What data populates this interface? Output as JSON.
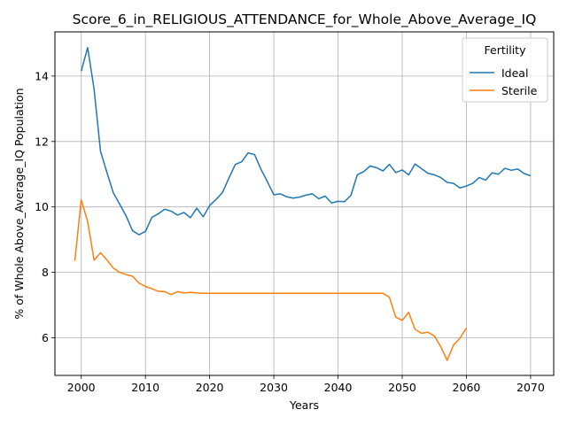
{
  "chart_data": {
    "type": "line",
    "title": "Score_6_in_RELIGIOUS_ATTENDANCE_for_Whole_Above_Average_IQ",
    "xlabel": "Years",
    "ylabel": "% of Whole Above_Average_IQ Population",
    "xlim": [
      1995.9,
      2073.6
    ],
    "ylim": [
      4.85,
      15.35
    ],
    "xticks": [
      2000,
      2010,
      2020,
      2030,
      2040,
      2050,
      2060,
      2070
    ],
    "yticks": [
      6,
      8,
      10,
      12,
      14
    ],
    "grid": true,
    "legend": {
      "title": "Fertility",
      "placement": "top-right"
    },
    "series": [
      {
        "name": "Ideal",
        "color": "#1f77b4",
        "x": [
          2000,
          2001,
          2002,
          2003,
          2004,
          2005,
          2006,
          2007,
          2008,
          2009,
          2010,
          2011,
          2012,
          2013,
          2014,
          2015,
          2016,
          2017,
          2018,
          2019,
          2020,
          2021,
          2022,
          2023,
          2024,
          2025,
          2026,
          2027,
          2028,
          2029,
          2030,
          2031,
          2032,
          2033,
          2034,
          2035,
          2036,
          2037,
          2038,
          2039,
          2040,
          2041,
          2042,
          2043,
          2044,
          2045,
          2046,
          2047,
          2048,
          2049,
          2050,
          2051,
          2052,
          2053,
          2054,
          2055,
          2056,
          2057,
          2058,
          2059,
          2060,
          2061,
          2062,
          2063,
          2064,
          2065,
          2066,
          2067,
          2068,
          2069,
          2070
        ],
        "values": [
          14.15,
          14.87,
          13.6,
          11.7,
          11.05,
          10.43,
          10.08,
          9.72,
          9.27,
          9.15,
          9.25,
          9.68,
          9.79,
          9.93,
          9.87,
          9.75,
          9.83,
          9.67,
          9.96,
          9.7,
          10.04,
          10.23,
          10.44,
          10.88,
          11.3,
          11.38,
          11.65,
          11.6,
          11.15,
          10.77,
          10.37,
          10.4,
          10.31,
          10.27,
          10.3,
          10.36,
          10.4,
          10.25,
          10.33,
          10.12,
          10.17,
          10.16,
          10.35,
          10.98,
          11.08,
          11.25,
          11.2,
          11.1,
          11.3,
          11.05,
          11.13,
          10.98,
          11.31,
          11.17,
          11.03,
          10.98,
          10.9,
          10.75,
          10.72,
          10.58,
          10.64,
          10.72,
          10.9,
          10.82,
          11.04,
          11.0,
          11.18,
          11.12,
          11.16,
          11.02,
          10.95
        ]
      },
      {
        "name": "Sterile",
        "color": "#ff7f0e",
        "x": [
          1999,
          2000,
          2001,
          2002,
          2003,
          2004,
          2005,
          2006,
          2007,
          2008,
          2009,
          2010,
          2011,
          2012,
          2013,
          2014,
          2015,
          2016,
          2017,
          2018,
          2019,
          2020,
          2021,
          2022,
          2023,
          2024,
          2025,
          2026,
          2027,
          2028,
          2029,
          2030,
          2031,
          2032,
          2033,
          2034,
          2035,
          2036,
          2037,
          2038,
          2039,
          2040,
          2041,
          2042,
          2043,
          2044,
          2045,
          2046,
          2047,
          2048,
          2049,
          2050,
          2051,
          2052,
          2053,
          2054,
          2055,
          2056,
          2057,
          2058,
          2059,
          2060
        ],
        "values": [
          8.35,
          10.22,
          9.55,
          8.37,
          8.6,
          8.38,
          8.13,
          8.0,
          7.93,
          7.88,
          7.67,
          7.57,
          7.5,
          7.42,
          7.41,
          7.32,
          7.41,
          7.37,
          7.39,
          7.37,
          7.36,
          7.36,
          7.36,
          7.36,
          7.36,
          7.36,
          7.36,
          7.36,
          7.36,
          7.36,
          7.36,
          7.36,
          7.36,
          7.36,
          7.36,
          7.36,
          7.36,
          7.36,
          7.36,
          7.36,
          7.36,
          7.36,
          7.36,
          7.36,
          7.36,
          7.36,
          7.36,
          7.36,
          7.36,
          7.24,
          6.63,
          6.53,
          6.78,
          6.26,
          6.14,
          6.17,
          6.06,
          5.73,
          5.31,
          5.78,
          5.99,
          6.3
        ]
      }
    ]
  }
}
